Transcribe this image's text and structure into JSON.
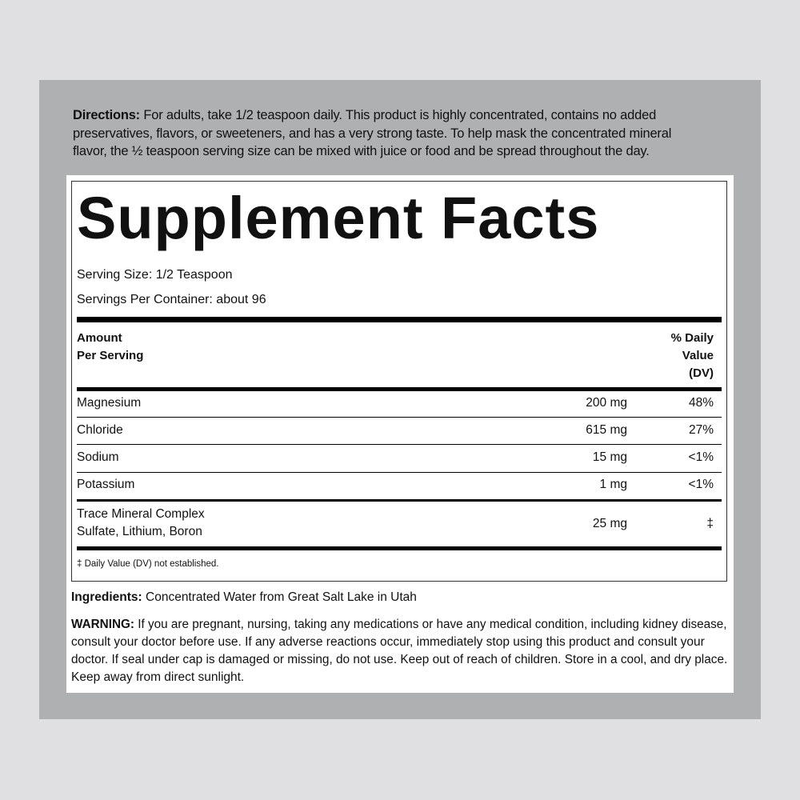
{
  "directions": {
    "label": "Directions:",
    "lines": [
      " For adults, take 1/2 teaspoon daily. This product is highly concentrated, contains no added",
      "preservatives, flavors, or sweeteners, and has a very strong taste. To help mask the concentrated mineral",
      "flavor, the ½ teaspoon serving size can be mixed with juice or food and be spread throughout the day."
    ]
  },
  "facts": {
    "title": "Supplement Facts",
    "serving_size": "Serving Size: 1/2 Teaspoon",
    "servings_per_container": "Servings Per Container: about 96",
    "header_amount": [
      "Amount",
      "Per Serving"
    ],
    "header_dv": [
      "% Daily",
      "Value",
      "(DV)"
    ],
    "rows": [
      {
        "name": "Magnesium",
        "amount": "200 mg",
        "dv": "48%"
      },
      {
        "name": "Chloride",
        "amount": "615 mg",
        "dv": "27%"
      },
      {
        "name": "Sodium",
        "amount": "15 mg",
        "dv": "<1%"
      },
      {
        "name": "Potassium",
        "amount": "1 mg",
        "dv": "<1%"
      }
    ],
    "trace": {
      "name": "Trace Mineral Complex",
      "sub": "Sulfate, Lithium, Boron",
      "amount": "25 mg",
      "dv": "‡"
    },
    "footnote": "‡ Daily Value (DV) not established."
  },
  "ingredients": {
    "label": "Ingredients:",
    "text": " Concentrated Water from Great Salt Lake in Utah"
  },
  "warning": {
    "label": "WARNING:",
    "lines": [
      " If you are pregnant, nursing, taking any medications or have any medical condition, including kidney disease,",
      "consult your doctor before use. If any adverse reactions occur, immediately stop using this product and consult your",
      "doctor. If seal under cap is damaged or missing, do not use. Keep out of reach of children. Store in a cool, and dry place.",
      "Keep away from direct sunlight."
    ]
  }
}
